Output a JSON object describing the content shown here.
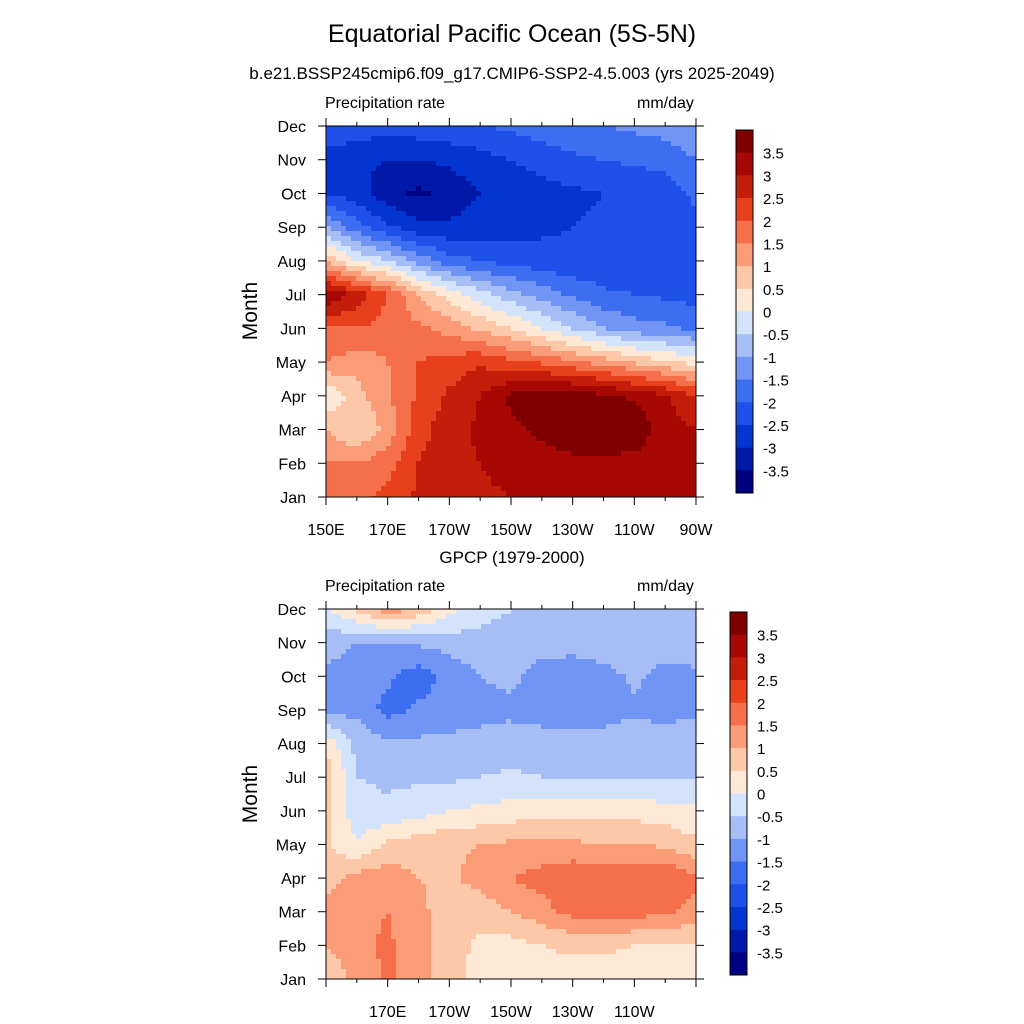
{
  "figure": {
    "title": "Equatorial Pacific Ocean (5S-5N)"
  },
  "chart_data": [
    {
      "type": "heatmap",
      "title": "b.e21.BSSP245cmip6.f09_g17.CMIP6-SSP2-4.5.003 (yrs 2025-2049)",
      "left_label": "Precipitation rate",
      "right_label": "mm/day",
      "ylabel": "Month",
      "xlabel": "",
      "x_tick_labels": [
        "150E",
        "170E",
        "170W",
        "150W",
        "130W",
        "110W",
        "90W"
      ],
      "y_tick_labels": [
        "Jan",
        "Feb",
        "Mar",
        "Apr",
        "May",
        "Jun",
        "Jul",
        "Aug",
        "Sep",
        "Oct",
        "Nov",
        "Dec"
      ],
      "x": [
        150,
        160,
        170,
        180,
        190,
        200,
        210,
        220,
        230,
        240,
        250,
        260,
        270
      ],
      "y": [
        "Jan",
        "Feb",
        "Mar",
        "Apr",
        "May",
        "Jun",
        "Jul",
        "Aug",
        "Sep",
        "Oct",
        "Nov",
        "Dec"
      ],
      "values": [
        [
          1.5,
          1.8,
          2.2,
          2.6,
          2.8,
          2.9,
          3.0,
          3.0,
          3.0,
          3.0,
          3.0,
          3.1,
          3.0
        ],
        [
          1.5,
          1.5,
          1.8,
          2.5,
          2.8,
          3.0,
          3.2,
          3.3,
          3.4,
          3.4,
          3.3,
          3.2,
          3.0
        ],
        [
          1.0,
          0.5,
          1.2,
          2.3,
          2.8,
          3.1,
          3.4,
          3.6,
          3.8,
          3.9,
          3.9,
          3.2,
          3.0
        ],
        [
          0.0,
          0.8,
          1.4,
          2.1,
          2.6,
          3.0,
          3.6,
          3.9,
          3.8,
          3.6,
          3.4,
          3.1,
          2.5
        ],
        [
          1.5,
          1.2,
          1.5,
          2.0,
          2.2,
          2.4,
          2.1,
          1.9,
          1.6,
          1.3,
          0.9,
          0.6,
          0.3
        ],
        [
          2.0,
          2.0,
          1.8,
          1.6,
          1.3,
          0.9,
          0.5,
          0.0,
          -0.5,
          -1.0,
          -1.3,
          -1.4,
          -1.6
        ],
        [
          3.5,
          2.8,
          2.0,
          1.0,
          0.3,
          -0.3,
          -0.8,
          -1.2,
          -1.6,
          -1.9,
          -2.0,
          -2.1,
          -2.2
        ],
        [
          1.0,
          0.0,
          -0.5,
          -1.2,
          -1.8,
          -2.0,
          -2.2,
          -2.3,
          -2.4,
          -2.4,
          -2.4,
          -2.4,
          -2.3
        ],
        [
          -1.0,
          -1.8,
          -2.4,
          -2.8,
          -2.9,
          -2.8,
          -2.7,
          -2.6,
          -2.5,
          -2.4,
          -2.4,
          -2.3,
          -2.1
        ],
        [
          -2.5,
          -2.8,
          -3.3,
          -3.6,
          -3.3,
          -3.0,
          -2.9,
          -2.7,
          -2.6,
          -2.5,
          -2.4,
          -2.3,
          -1.9
        ],
        [
          -2.8,
          -2.9,
          -3.0,
          -3.0,
          -2.9,
          -2.7,
          -2.5,
          -2.3,
          -2.1,
          -2.0,
          -1.9,
          -1.8,
          -1.5
        ],
        [
          -2.0,
          -2.2,
          -2.3,
          -2.2,
          -2.1,
          -2.0,
          -1.9,
          -1.7,
          -1.6,
          -1.5,
          -1.4,
          -1.3,
          -1.1
        ]
      ],
      "colorbar": {
        "labels": [
          "3.5",
          "3",
          "2.5",
          "2",
          "1.5",
          "1",
          "0.5",
          "0",
          "-0.5",
          "-1",
          "-1.5",
          "-2",
          "-2.5",
          "-3",
          "-3.5"
        ]
      }
    },
    {
      "type": "heatmap",
      "title": "GPCP (1979-2000)",
      "left_label": "Precipitation rate",
      "right_label": "mm/day",
      "ylabel": "Month",
      "xlabel": "",
      "x_tick_labels": [
        "170E",
        "170W",
        "150W",
        "130W",
        "110W"
      ],
      "y_tick_labels": [
        "Jan",
        "Feb",
        "Mar",
        "Apr",
        "May",
        "Jun",
        "Jul",
        "Aug",
        "Sep",
        "Oct",
        "Nov",
        "Dec"
      ],
      "x": [
        150,
        160,
        170,
        180,
        190,
        200,
        210,
        220,
        230,
        240,
        250,
        260,
        270
      ],
      "y": [
        "Jan",
        "Feb",
        "Mar",
        "Apr",
        "May",
        "Jun",
        "Jul",
        "Aug",
        "Sep",
        "Oct",
        "Nov",
        "Dec"
      ],
      "values": [
        [
          0.6,
          1.2,
          1.6,
          1.2,
          0.7,
          0.3,
          0.2,
          0.3,
          0.3,
          0.2,
          0.2,
          0.3,
          0.3
        ],
        [
          1.0,
          1.3,
          1.6,
          1.2,
          0.7,
          0.4,
          0.3,
          0.5,
          0.6,
          0.6,
          0.5,
          0.5,
          0.4
        ],
        [
          1.2,
          1.4,
          1.5,
          1.1,
          0.8,
          0.7,
          1.0,
          1.3,
          1.7,
          1.8,
          1.7,
          1.6,
          1.3
        ],
        [
          0.8,
          1.2,
          1.3,
          1.0,
          0.9,
          1.2,
          1.5,
          1.7,
          1.9,
          1.8,
          1.9,
          2.0,
          1.6
        ],
        [
          0.6,
          0.0,
          0.6,
          0.8,
          0.9,
          1.0,
          1.1,
          1.1,
          1.1,
          1.0,
          1.0,
          0.9,
          0.6
        ],
        [
          0.6,
          -0.3,
          -0.4,
          -0.2,
          0.0,
          0.1,
          0.2,
          0.3,
          0.3,
          0.3,
          0.3,
          0.2,
          0.1
        ],
        [
          0.8,
          -0.5,
          -0.6,
          -0.6,
          -0.6,
          -0.5,
          -0.4,
          -0.5,
          -0.6,
          -0.6,
          -0.6,
          -0.6,
          -0.5
        ],
        [
          0.4,
          -0.7,
          -0.9,
          -0.9,
          -0.9,
          -0.9,
          -0.8,
          -0.8,
          -0.8,
          -0.8,
          -0.7,
          -0.7,
          -0.6
        ],
        [
          -1.3,
          -1.1,
          -1.7,
          -1.4,
          -1.2,
          -1.1,
          -1.1,
          -1.2,
          -1.3,
          -1.2,
          -1.1,
          -1.2,
          -1.1
        ],
        [
          -1.1,
          -1.2,
          -1.4,
          -1.8,
          -1.3,
          -1.0,
          -0.9,
          -1.2,
          -1.3,
          -1.2,
          -0.9,
          -1.2,
          -1.1
        ],
        [
          -0.8,
          -1.0,
          -1.0,
          -0.9,
          -0.8,
          -0.7,
          -0.7,
          -0.8,
          -0.8,
          -0.7,
          -0.6,
          -0.7,
          -0.7
        ],
        [
          0.0,
          0.6,
          1.3,
          0.9,
          0.2,
          -0.3,
          -0.5,
          -0.5,
          -0.5,
          -0.5,
          -0.5,
          -0.5,
          -0.5
        ]
      ],
      "colorbar": {
        "labels": [
          "3.5",
          "3",
          "2.5",
          "2",
          "1.5",
          "1",
          "0.5",
          "0",
          "-0.5",
          "-1",
          "-1.5",
          "-2",
          "-2.5",
          "-3",
          "-3.5"
        ]
      }
    }
  ],
  "palette": {
    "levels": [
      -3.5,
      -3,
      -2.5,
      -2,
      -1.5,
      -1,
      -0.5,
      0,
      0.5,
      1,
      1.5,
      2,
      2.5,
      3,
      3.5
    ],
    "colors": [
      "#000082",
      "#0019a8",
      "#0335d0",
      "#1e50ea",
      "#3d6ef2",
      "#7195f5",
      "#a6bdf6",
      "#d3e3fb",
      "#fde9d6",
      "#fcc8a8",
      "#fa9c78",
      "#f5704a",
      "#e8401c",
      "#c41e0a",
      "#a80804",
      "#800000"
    ]
  }
}
